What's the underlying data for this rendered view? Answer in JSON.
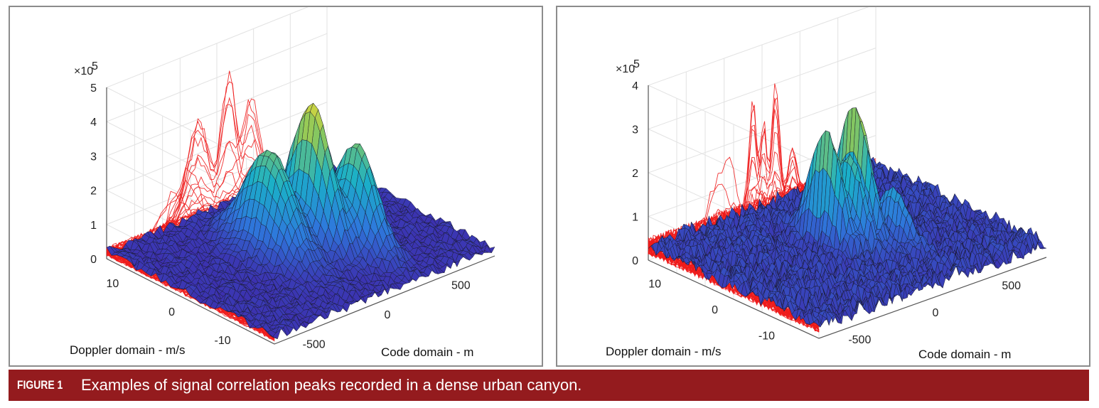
{
  "caption": {
    "label": "FIGURE 1",
    "text": "Examples of signal correlation peaks recorded in a dense urban canyon."
  },
  "colors": {
    "caption_bg": "#941b1e",
    "projection_lines": "#ee1c1c",
    "surface_low": "#3f3f95",
    "surface_mid": "#1aa5c9",
    "surface_high": "#f2c43a"
  },
  "chart_data": [
    {
      "type": "surface3d",
      "title": "",
      "xlabel": "Code domain - m",
      "ylabel": "Doppler domain - m/s",
      "zlabel": "",
      "z_exponent_label": "×10",
      "z_exponent": "5",
      "x_ticks": [
        "-500",
        "0",
        "500"
      ],
      "y_ticks": [
        "10",
        "0",
        "-10"
      ],
      "z_ticks": [
        "0",
        "1",
        "2",
        "3",
        "4",
        "5"
      ],
      "xlim": [
        -750,
        750
      ],
      "ylim": [
        -15,
        15
      ],
      "zlim": [
        0,
        5
      ],
      "noise_floor": 0.3,
      "peaks": [
        {
          "code": -130,
          "doppler": 2,
          "height": 3.1,
          "code_width": 110,
          "doppler_width": 6
        },
        {
          "code": 80,
          "doppler": 0,
          "height": 4.3,
          "code_width": 70,
          "doppler_width": 5
        },
        {
          "code": 230,
          "doppler": -4,
          "height": 3.2,
          "code_width": 85,
          "doppler_width": 5
        }
      ]
    },
    {
      "type": "surface3d",
      "title": "",
      "xlabel": "Code domain - m",
      "ylabel": "Doppler domain - m/s",
      "zlabel": "",
      "z_exponent_label": "×10",
      "z_exponent": "5",
      "x_ticks": [
        "-500",
        "0",
        "500"
      ],
      "y_ticks": [
        "10",
        "0",
        "-10"
      ],
      "z_ticks": [
        "0",
        "1",
        "2",
        "3",
        "4"
      ],
      "xlim": [
        -750,
        750
      ],
      "ylim": [
        -15,
        15
      ],
      "zlim": [
        0,
        4
      ],
      "noise_floor": 0.45,
      "peaks": [
        {
          "code": -60,
          "doppler": 2,
          "height": 2.9,
          "code_width": 35,
          "doppler_width": 4
        },
        {
          "code": 10,
          "doppler": 0,
          "height": 2.3,
          "code_width": 30,
          "doppler_width": 4
        },
        {
          "code": 90,
          "doppler": 1,
          "height": 3.3,
          "code_width": 35,
          "doppler_width": 4
        },
        {
          "code": 200,
          "doppler": -3,
          "height": 1.4,
          "code_width": 40,
          "doppler_width": 4
        }
      ]
    }
  ]
}
